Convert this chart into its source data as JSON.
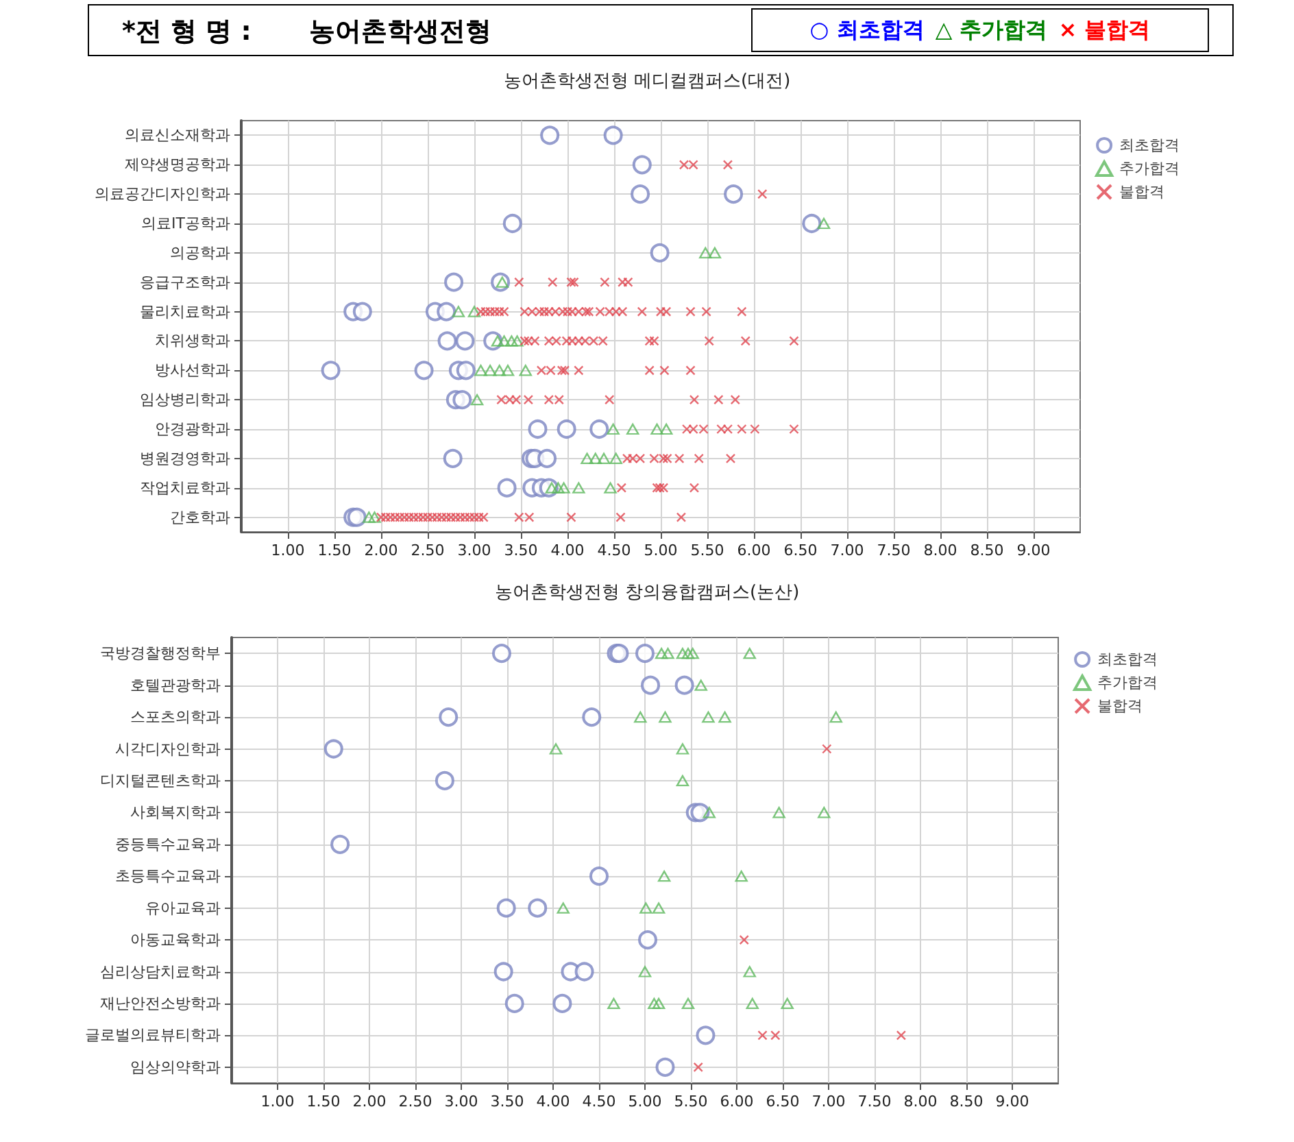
{
  "chart_data": [
    {
      "type": "scatter",
      "title": "농어촌학생전형 메디컬캠퍼스(대전)",
      "annotations": [
        "*전 형 명 :",
        "농어촌학생전형",
        "○ 최초합격",
        "△ 추가합격",
        "× 불합격"
      ],
      "orientation": "horizontal",
      "legend": "top right",
      "grid": true,
      "categories": [
        "의료신소재학과",
        "제약생명공학과",
        "의료공간디자인학과",
        "의료IT공학과",
        "의공학과",
        "응급구조학과",
        "물리치료학과",
        "치위생학과",
        "방사선학과",
        "임상병리학과",
        "안경광학과",
        "병원경영학과",
        "작업치료학과",
        "간호학과"
      ],
      "xlim": [
        0.5,
        9.5
      ],
      "xticks": [
        {
          "value": 1,
          "label": "1.00"
        },
        {
          "value": 1.5,
          "label": "1.50"
        },
        {
          "value": 2,
          "label": "2.00"
        },
        {
          "value": 2.5,
          "label": "2.50"
        },
        {
          "value": 3,
          "label": "3.00"
        },
        {
          "value": 3.5,
          "label": "3.50"
        },
        {
          "value": 4,
          "label": "4.00"
        },
        {
          "value": 4.5,
          "label": "4.50"
        },
        {
          "value": 5,
          "label": "5.00"
        },
        {
          "value": 5.5,
          "label": "5.50"
        },
        {
          "value": 6,
          "label": "6.00"
        },
        {
          "value": 6.5,
          "label": "6.50"
        },
        {
          "value": 7,
          "label": "7.00"
        },
        {
          "value": 7.5,
          "label": "7.50"
        },
        {
          "value": 8,
          "label": "8.00"
        },
        {
          "value": 8.5,
          "label": "8.50"
        },
        {
          "value": 9,
          "label": "9.00"
        }
      ],
      "series": [
        {
          "name": "최초합격",
          "color": "#7a84c2",
          "marker": "circle",
          "values": [
            3.81,
            4.49,
            4.8,
            4.78,
            5.78,
            3.41,
            6.62,
            4.99,
            2.78,
            3.28,
            1.7,
            1.8,
            2.58,
            2.7,
            2.71,
            2.9,
            3.2,
            1.46,
            2.46,
            2.83,
            2.91,
            2.8,
            2.87,
            3.68,
            3.99,
            4.34,
            2.77,
            3.61,
            3.65,
            3.78,
            3.35,
            3.62,
            3.72,
            3.8,
            1.7,
            1.74
          ],
          "x": [
            "의료신소재학과",
            "의료신소재학과",
            "제약생명공학과",
            "의료공간디자인학과",
            "의료공간디자인학과",
            "의료IT공학과",
            "의료IT공학과",
            "의공학과",
            "응급구조학과",
            "응급구조학과",
            "물리치료학과",
            "물리치료학과",
            "물리치료학과",
            "물리치료학과",
            "치위생학과",
            "치위생학과",
            "치위생학과",
            "방사선학과",
            "방사선학과",
            "방사선학과",
            "방사선학과",
            "임상병리학과",
            "임상병리학과",
            "안경광학과",
            "안경광학과",
            "안경광학과",
            "병원경영학과",
            "병원경영학과",
            "병원경영학과",
            "병원경영학과",
            "작업치료학과",
            "작업치료학과",
            "작업치료학과",
            "작업치료학과",
            "간호학과",
            "간호학과"
          ]
        },
        {
          "name": "추가합격",
          "color": "#5cb85c",
          "marker": "triangle",
          "values": [
            6.75,
            5.48,
            5.58,
            3.3,
            2.83,
            3.0,
            3.25,
            3.32,
            3.4,
            3.46,
            3.07,
            3.17,
            3.27,
            3.36,
            3.55,
            3.03,
            4.49,
            4.7,
            4.96,
            5.06,
            4.21,
            4.3,
            4.39,
            4.52,
            3.83,
            3.9,
            3.96,
            4.12,
            4.46,
            1.87,
            1.93
          ],
          "x": [
            "의료IT공학과",
            "의공학과",
            "의공학과",
            "응급구조학과",
            "물리치료학과",
            "물리치료학과",
            "치위생학과",
            "치위생학과",
            "치위생학과",
            "치위생학과",
            "방사선학과",
            "방사선학과",
            "방사선학과",
            "방사선학과",
            "방사선학과",
            "임상병리학과",
            "안경광학과",
            "안경광학과",
            "안경광학과",
            "안경광학과",
            "병원경영학과",
            "병원경영학과",
            "병원경영학과",
            "병원경영학과",
            "작업치료학과",
            "작업치료학과",
            "작업치료학과",
            "작업치료학과",
            "작업치료학과",
            "간호학과",
            "간호학과"
          ]
        },
        {
          "name": "불합격",
          "color": "#e0444e",
          "marker": "cross",
          "values": [
            5.25,
            5.35,
            5.72,
            6.09,
            3.48,
            3.84,
            4.04,
            4.07,
            4.4,
            4.59,
            4.65,
            3.07,
            3.12,
            3.17,
            3.22,
            3.27,
            3.32,
            3.54,
            3.62,
            3.7,
            3.75,
            3.8,
            3.87,
            3.95,
            4.0,
            4.05,
            4.12,
            4.2,
            4.23,
            4.35,
            4.45,
            4.52,
            4.59,
            4.8,
            5.0,
            5.06,
            5.32,
            5.49,
            5.87,
            3.54,
            3.58,
            3.65,
            3.8,
            3.88,
            3.99,
            4.05,
            4.12,
            4.19,
            4.28,
            4.38,
            4.88,
            4.93,
            5.52,
            5.91,
            6.43,
            3.72,
            3.82,
            3.94,
            3.97,
            4.12,
            4.88,
            5.04,
            5.32,
            3.29,
            3.38,
            3.45,
            3.58,
            3.8,
            3.91,
            4.45,
            5.36,
            5.62,
            5.8,
            5.28,
            5.35,
            5.46,
            5.65,
            5.72,
            5.87,
            6.01,
            6.43,
            4.64,
            4.7,
            4.78,
            4.93,
            5.03,
            5.07,
            5.2,
            5.41,
            5.75,
            4.58,
            4.96,
            4.99,
            5.03,
            5.36,
            2.0,
            2.05,
            2.1,
            2.15,
            2.2,
            2.25,
            2.3,
            2.35,
            2.4,
            2.45,
            2.5,
            2.55,
            2.6,
            2.65,
            2.7,
            2.75,
            2.8,
            2.85,
            2.9,
            2.95,
            3.0,
            3.05,
            3.1,
            3.48,
            3.59,
            4.04,
            4.57,
            5.22
          ],
          "x": [
            "제약생명공학과",
            "제약생명공학과",
            "제약생명공학과",
            "의료공간디자인학과",
            "응급구조학과",
            "응급구조학과",
            "응급구조학과",
            "응급구조학과",
            "응급구조학과",
            "응급구조학과",
            "응급구조학과",
            "물리치료학과",
            "물리치료학과",
            "물리치료학과",
            "물리치료학과",
            "물리치료학과",
            "물리치료학과",
            "물리치료학과",
            "물리치료학과",
            "물리치료학과",
            "물리치료학과",
            "물리치료학과",
            "물리치료학과",
            "물리치료학과",
            "물리치료학과",
            "물리치료학과",
            "물리치료학과",
            "물리치료학과",
            "물리치료학과",
            "물리치료학과",
            "물리치료학과",
            "물리치료학과",
            "물리치료학과",
            "물리치료학과",
            "물리치료학과",
            "물리치료학과",
            "물리치료학과",
            "물리치료학과",
            "물리치료학과",
            "치위생학과",
            "치위생학과",
            "치위생학과",
            "치위생학과",
            "치위생학과",
            "치위생학과",
            "치위생학과",
            "치위생학과",
            "치위생학과",
            "치위생학과",
            "치위생학과",
            "치위생학과",
            "치위생학과",
            "치위생학과",
            "치위생학과",
            "치위생학과",
            "방사선학과",
            "방사선학과",
            "방사선학과",
            "방사선학과",
            "방사선학과",
            "방사선학과",
            "방사선학과",
            "방사선학과",
            "임상병리학과",
            "임상병리학과",
            "임상병리학과",
            "임상병리학과",
            "임상병리학과",
            "임상병리학과",
            "임상병리학과",
            "임상병리학과",
            "임상병리학과",
            "임상병리학과",
            "안경광학과",
            "안경광학과",
            "안경광학과",
            "안경광학과",
            "안경광학과",
            "안경광학과",
            "안경광학과",
            "안경광학과",
            "병원경영학과",
            "병원경영학과",
            "병원경영학과",
            "병원경영학과",
            "병원경영학과",
            "병원경영학과",
            "병원경영학과",
            "병원경영학과",
            "병원경영학과",
            "작업치료학과",
            "작업치료학과",
            "작업치료학과",
            "작업치료학과",
            "작업치료학과",
            "간호학과",
            "간호학과",
            "간호학과",
            "간호학과",
            "간호학과",
            "간호학과",
            "간호학과",
            "간호학과",
            "간호학과",
            "간호학과",
            "간호학과",
            "간호학과",
            "간호학과",
            "간호학과",
            "간호학과",
            "간호학과",
            "간호학과",
            "간호학과",
            "간호학과",
            "간호학과",
            "간호학과",
            "간호학과",
            "간호학과",
            "간호학과",
            "간호학과",
            "간호학과",
            "간호학과",
            "간호학과"
          ]
        }
      ]
    },
    {
      "type": "scatter",
      "title": "농어촌학생전형 창의융합캠퍼스(논산)",
      "orientation": "horizontal",
      "legend": "top right",
      "grid": true,
      "categories": [
        "국방경찰행정학부",
        "호텔관광학과",
        "스포츠의학과",
        "시각디자인학과",
        "디지털콘텐츠학과",
        "사회복지학과",
        "중등특수교육과",
        "초등특수교육과",
        "유아교육과",
        "아동교육학과",
        "심리상담치료학과",
        "재난안전소방학과",
        "글로벌의료뷰티학과",
        "임상의약학과"
      ],
      "xlim": [
        0.5,
        9.5
      ],
      "xticks": [
        {
          "value": 1,
          "label": "1.00"
        },
        {
          "value": 1.5,
          "label": "1.50"
        },
        {
          "value": 2,
          "label": "2.00"
        },
        {
          "value": 2.5,
          "label": "2.50"
        },
        {
          "value": 3,
          "label": "3.00"
        },
        {
          "value": 3.5,
          "label": "3.50"
        },
        {
          "value": 4,
          "label": "4.00"
        },
        {
          "value": 4.5,
          "label": "4.50"
        },
        {
          "value": 5,
          "label": "5.00"
        },
        {
          "value": 5.5,
          "label": "5.50"
        },
        {
          "value": 6,
          "label": "6.00"
        },
        {
          "value": 6.5,
          "label": "6.50"
        },
        {
          "value": 7,
          "label": "7.00"
        },
        {
          "value": 7.5,
          "label": "7.50"
        },
        {
          "value": 8,
          "label": "8.00"
        },
        {
          "value": 8.5,
          "label": "8.50"
        },
        {
          "value": 9,
          "label": "9.00"
        }
      ],
      "series": [
        {
          "name": "최초합격",
          "color": "#7a84c2",
          "marker": "circle",
          "values": [
            3.44,
            4.69,
            4.72,
            5.0,
            5.06,
            5.43,
            2.86,
            4.42,
            1.61,
            2.82,
            5.55,
            5.6,
            1.68,
            4.5,
            3.49,
            3.83,
            5.03,
            3.46,
            4.19,
            4.34,
            3.58,
            4.1,
            5.66,
            5.22
          ],
          "x": [
            "국방경찰행정학부",
            "국방경찰행정학부",
            "국방경찰행정학부",
            "국방경찰행정학부",
            "호텔관광학과",
            "호텔관광학과",
            "스포츠의학과",
            "스포츠의학과",
            "시각디자인학과",
            "디지털콘텐츠학과",
            "사회복지학과",
            "사회복지학과",
            "중등특수교육과",
            "초등특수교육과",
            "유아교육과",
            "유아교육과",
            "아동교육학과",
            "심리상담치료학과",
            "심리상담치료학과",
            "심리상담치료학과",
            "재난안전소방학과",
            "재난안전소방학과",
            "글로벌의료뷰티학과",
            "임상의약학과"
          ]
        },
        {
          "name": "추가합격",
          "color": "#5cb85c",
          "marker": "triangle",
          "values": [
            5.18,
            5.25,
            5.41,
            5.47,
            5.52,
            6.14,
            5.61,
            4.95,
            5.22,
            5.69,
            5.87,
            7.08,
            4.03,
            5.41,
            5.41,
            5.7,
            6.46,
            6.95,
            5.21,
            6.05,
            4.11,
            5.01,
            5.15,
            5.0,
            6.14,
            4.66,
            5.1,
            5.15,
            5.47,
            6.17,
            6.55
          ],
          "x": [
            "국방경찰행정학부",
            "국방경찰행정학부",
            "국방경찰행정학부",
            "국방경찰행정학부",
            "국방경찰행정학부",
            "국방경찰행정학부",
            "호텔관광학과",
            "스포츠의학과",
            "스포츠의학과",
            "스포츠의학과",
            "스포츠의학과",
            "스포츠의학과",
            "시각디자인학과",
            "시각디자인학과",
            "디지털콘텐츠학과",
            "사회복지학과",
            "사회복지학과",
            "사회복지학과",
            "초등특수교육과",
            "초등특수교육과",
            "유아교육과",
            "유아교육과",
            "유아교육과",
            "심리상담치료학과",
            "심리상담치료학과",
            "재난안전소방학과",
            "재난안전소방학과",
            "재난안전소방학과",
            "재난안전소방학과",
            "재난안전소방학과",
            "재난안전소방학과"
          ]
        },
        {
          "name": "불합격",
          "color": "#e0444e",
          "marker": "cross",
          "values": [
            6.98,
            6.08,
            6.28,
            6.42,
            7.79,
            5.58
          ],
          "x": [
            "시각디자인학과",
            "아동교육학과",
            "글로벌의료뷰티학과",
            "글로벌의료뷰티학과",
            "글로벌의료뷰티학과",
            "임상의약학과"
          ]
        }
      ]
    }
  ]
}
